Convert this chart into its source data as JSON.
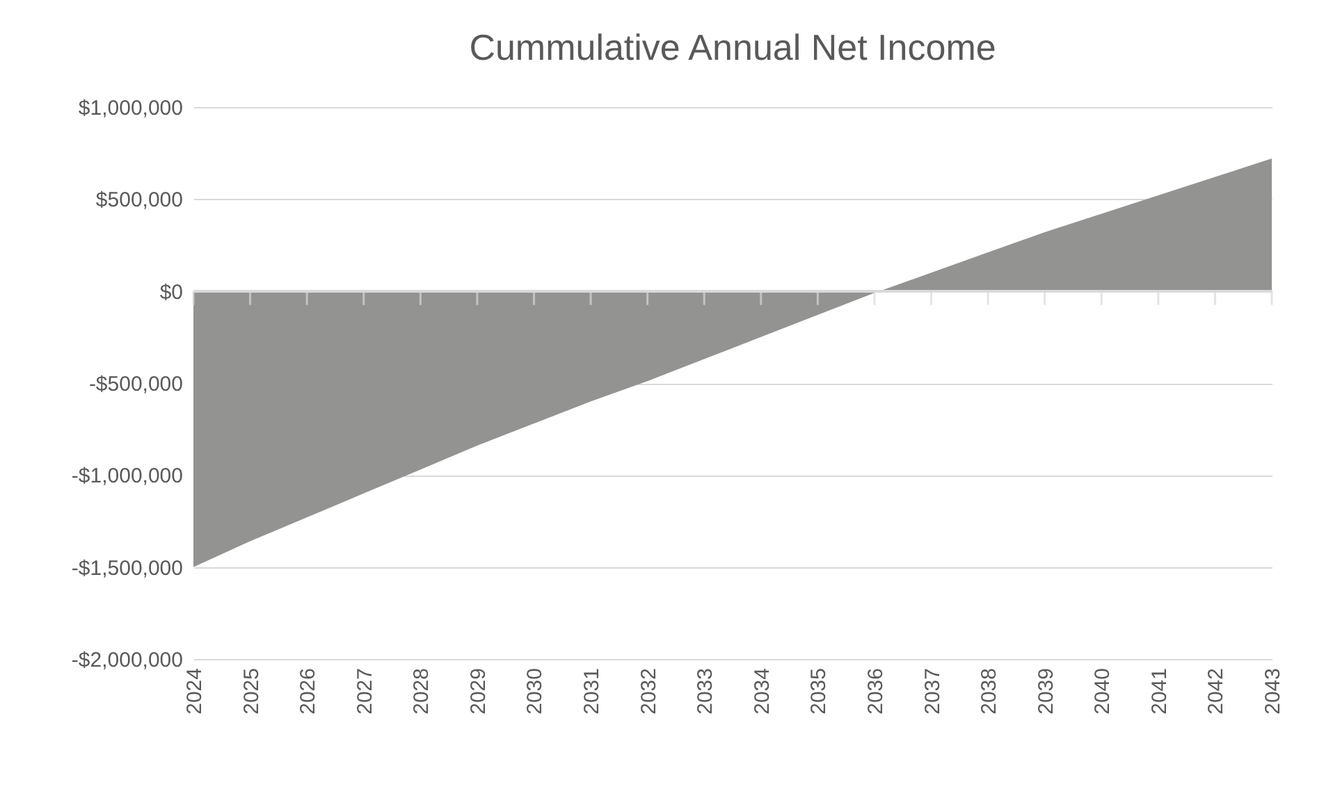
{
  "chart_data": {
    "type": "area",
    "title": "Cummulative Annual Net Income",
    "categories": [
      "2024",
      "2025",
      "2026",
      "2027",
      "2028",
      "2029",
      "2030",
      "2031",
      "2032",
      "2033",
      "2034",
      "2035",
      "2036",
      "2037",
      "2038",
      "2039",
      "2040",
      "2041",
      "2042",
      "2043"
    ],
    "series": [
      {
        "color": "#939492",
        "values": [
          -1500000,
          -1360000,
          -1230000,
          -1100000,
          -970000,
          -840000,
          -720000,
          -600000,
          -490000,
          -370000,
          -250000,
          -130000,
          -10000,
          100000,
          210000,
          320000,
          420000,
          520000,
          620000,
          720000
        ]
      }
    ],
    "ylim": [
      -2000000,
      1000000
    ],
    "yticks": [
      {
        "value": -2000000,
        "label": "-$2,000,000"
      },
      {
        "value": -1500000,
        "label": "-$1,500,000"
      },
      {
        "value": -1000000,
        "label": "-$1,000,000"
      },
      {
        "value": -500000,
        "label": "-$500,000"
      },
      {
        "value": 0,
        "label": "$0"
      },
      {
        "value": 500000,
        "label": "$500,000"
      },
      {
        "value": 1000000,
        "label": "$1,000,000"
      }
    ],
    "grid": "y"
  }
}
